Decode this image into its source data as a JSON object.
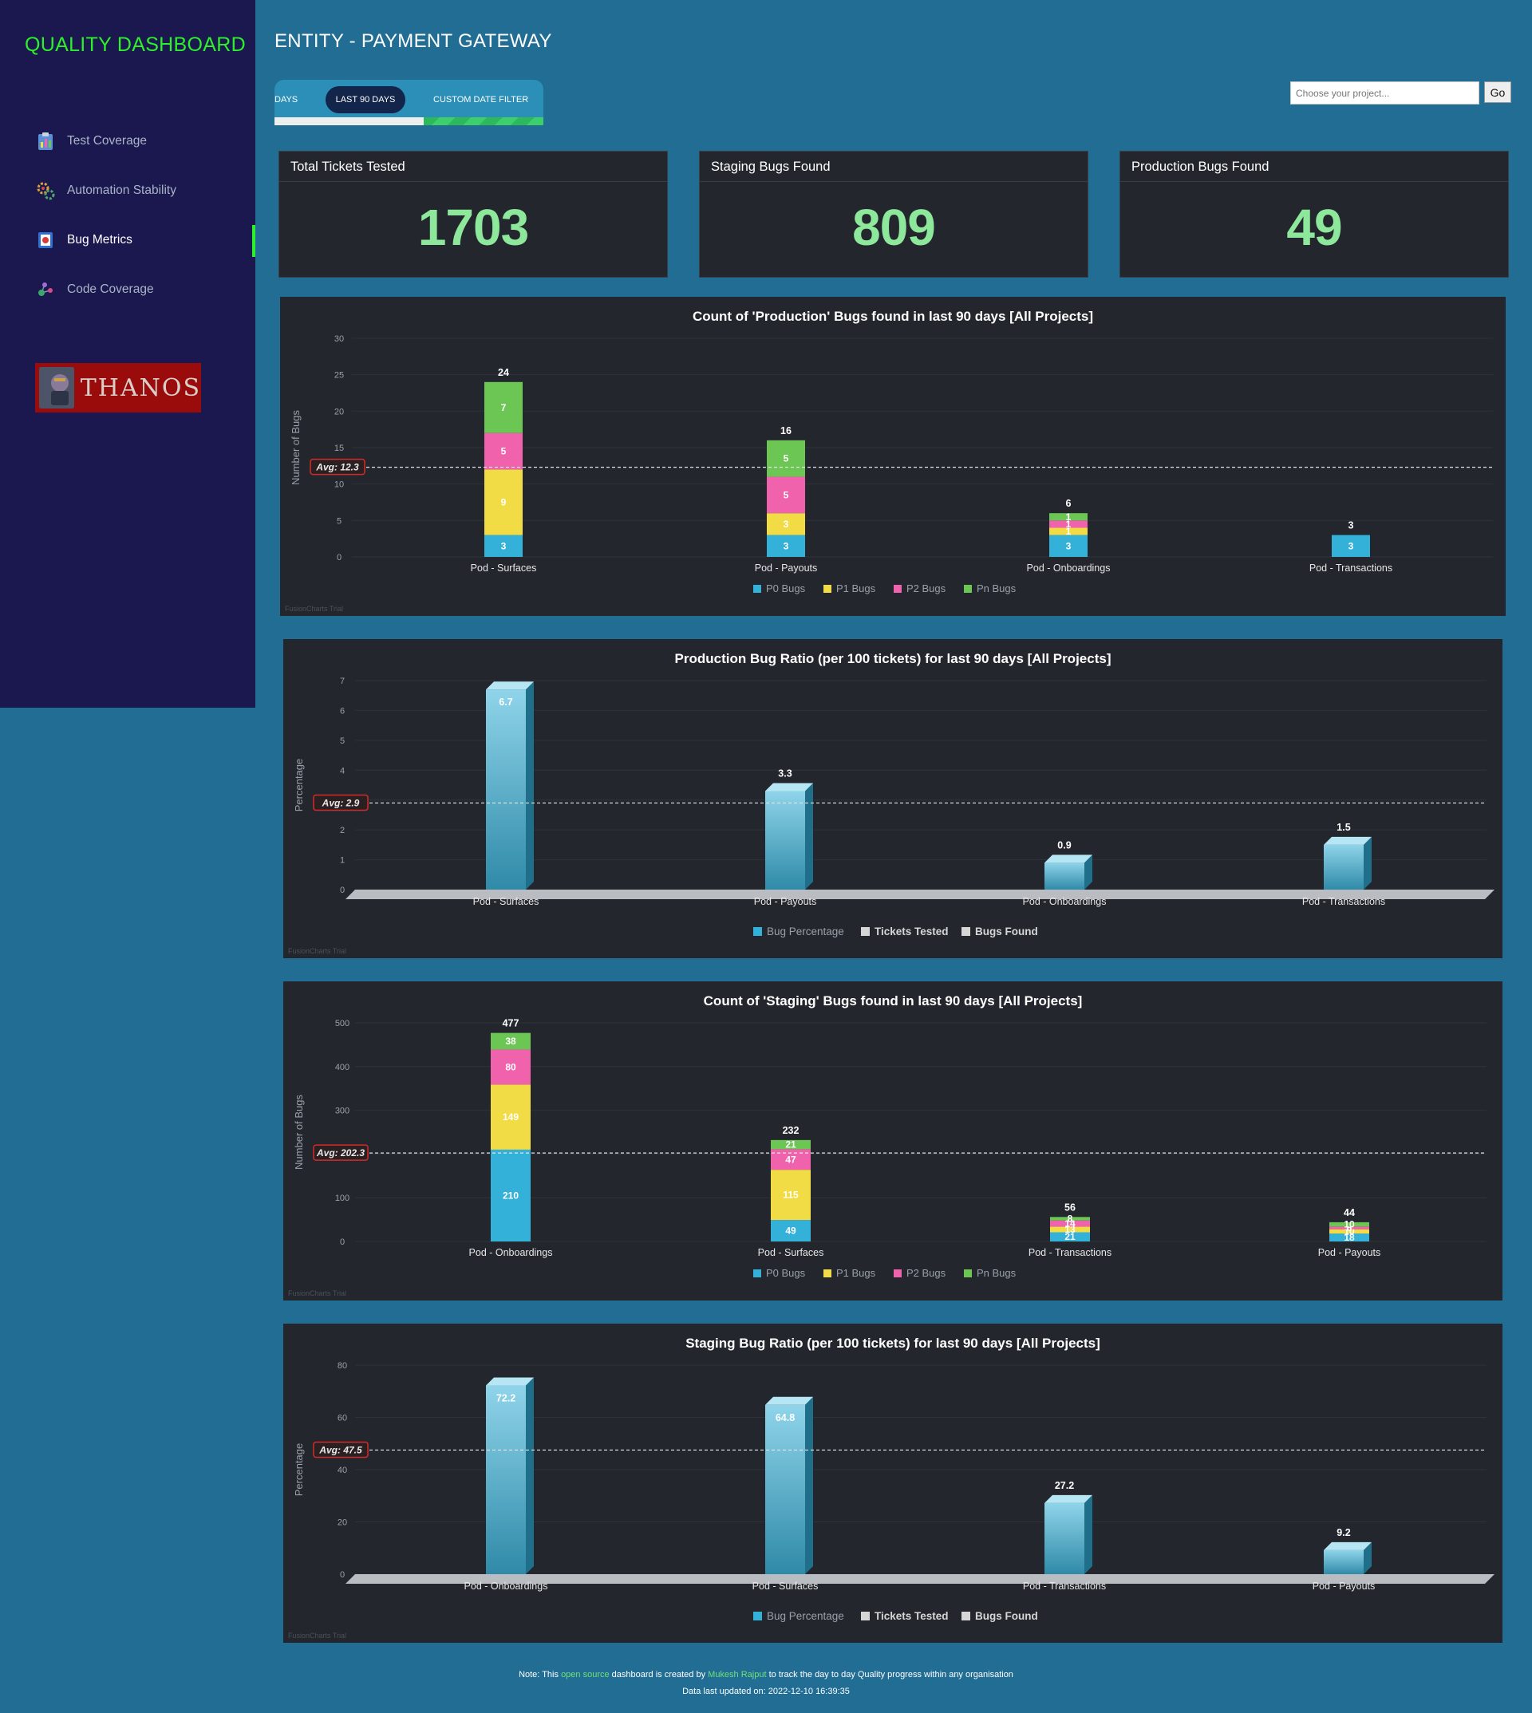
{
  "sidebar": {
    "brand": "QUALITY DASHBOARD",
    "items": [
      {
        "label": "Test Coverage",
        "icon": "clipboard-chart-icon"
      },
      {
        "label": "Automation Stability",
        "icon": "gears-icon"
      },
      {
        "label": "Bug Metrics",
        "icon": "bug-icon",
        "active": true
      },
      {
        "label": "Code Coverage",
        "icon": "molecule-icon"
      }
    ],
    "logo_text": "THANOS"
  },
  "header": {
    "title": "ENTITY - PAYMENT GATEWAY",
    "tabs": [
      "DAYS",
      "LAST 90 DAYS",
      "CUSTOM DATE FILTER"
    ],
    "active_tab": "LAST 90 DAYS",
    "project_placeholder": "Choose your project...",
    "go_label": "Go"
  },
  "kpis": [
    {
      "title": "Total Tickets Tested",
      "value": "1703"
    },
    {
      "title": "Staging Bugs Found",
      "value": "809"
    },
    {
      "title": "Production Bugs Found",
      "value": "49"
    }
  ],
  "colors": {
    "p0": "#33b1d9",
    "p1": "#f1dc45",
    "p2": "#f062ac",
    "pn": "#6cc654",
    "kpi": "#8ee89c",
    "accent": "#2ef02a"
  },
  "chart_data": [
    {
      "type": "bar",
      "stacked": true,
      "title": "Count of 'Production' Bugs found in last 90 days [All Projects]",
      "ylabel": "Number of Bugs",
      "ylim": [
        0,
        30
      ],
      "yticks": [
        0,
        5,
        10,
        15,
        20,
        25,
        30
      ],
      "categories": [
        "Pod - Surfaces",
        "Pod - Payouts",
        "Pod - Onboardings",
        "Pod - Transactions"
      ],
      "series": [
        {
          "name": "P0 Bugs",
          "values": [
            3,
            3,
            3,
            3
          ]
        },
        {
          "name": "P1 Bugs",
          "values": [
            9,
            3,
            1,
            0
          ]
        },
        {
          "name": "P2 Bugs",
          "values": [
            5,
            5,
            1,
            0
          ]
        },
        {
          "name": "Pn Bugs",
          "values": [
            7,
            5,
            1,
            0
          ]
        }
      ],
      "totals": [
        24,
        16,
        6,
        3
      ],
      "avg": 12.3,
      "avg_label": "Avg: 12.3",
      "trial": "FusionCharts Trial"
    },
    {
      "type": "bar",
      "title": "Production Bug Ratio (per 100 tickets) for last 90 days [All Projects]",
      "ylabel": "Percentage",
      "ylim": [
        0,
        7
      ],
      "yticks": [
        0,
        1,
        2,
        3,
        4,
        5,
        6,
        7
      ],
      "categories": [
        "Pod - Surfaces",
        "Pod - Payouts",
        "Pod - Onboardings",
        "Pod - Transactions"
      ],
      "values": [
        6.7,
        3.3,
        0.9,
        1.5
      ],
      "legend": [
        "Bug Percentage",
        "Tickets Tested",
        "Bugs Found"
      ],
      "avg": 2.9,
      "avg_label": "Avg: 2.9",
      "trial": "FusionCharts Trial"
    },
    {
      "type": "bar",
      "stacked": true,
      "title": "Count of 'Staging' Bugs found in last 90 days [All Projects]",
      "ylabel": "Number of Bugs",
      "ylim": [
        0,
        500
      ],
      "yticks": [
        0,
        100,
        200,
        300,
        400,
        500
      ],
      "categories": [
        "Pod - Onboardings",
        "Pod - Surfaces",
        "Pod - Transactions",
        "Pod - Payouts"
      ],
      "series": [
        {
          "name": "P0 Bugs",
          "values": [
            210,
            49,
            21,
            18
          ]
        },
        {
          "name": "P1 Bugs",
          "values": [
            149,
            115,
            13,
            10
          ]
        },
        {
          "name": "P2 Bugs",
          "values": [
            80,
            47,
            14,
            6
          ]
        },
        {
          "name": "Pn Bugs",
          "values": [
            38,
            21,
            8,
            10
          ]
        }
      ],
      "totals": [
        477,
        232,
        56,
        44
      ],
      "avg": 202.3,
      "avg_label": "Avg: 202.3",
      "trial": "FusionCharts Trial"
    },
    {
      "type": "bar",
      "title": "Staging Bug Ratio (per 100 tickets) for last 90 days [All Projects]",
      "ylabel": "Percentage",
      "ylim": [
        0,
        80
      ],
      "yticks": [
        0,
        20,
        40,
        60,
        80
      ],
      "categories": [
        "Pod - Onboardings",
        "Pod - Surfaces",
        "Pod - Transactions",
        "Pod - Payouts"
      ],
      "values": [
        72.2,
        64.8,
        27.2,
        9.2
      ],
      "legend": [
        "Bug Percentage",
        "Tickets Tested",
        "Bugs Found"
      ],
      "avg": 47.5,
      "avg_label": "Avg: 47.5",
      "trial": "FusionCharts Trial"
    }
  ],
  "footer": {
    "note_prefix": "Note: This",
    "note_link": "open source",
    "note_mid": "dashboard is created by",
    "author": "Mukesh Rajput",
    "note_suffix": "to track the day to day Quality progress within any organisation",
    "updated": "Data last updated on: 2022-12-10 16:39:35"
  }
}
